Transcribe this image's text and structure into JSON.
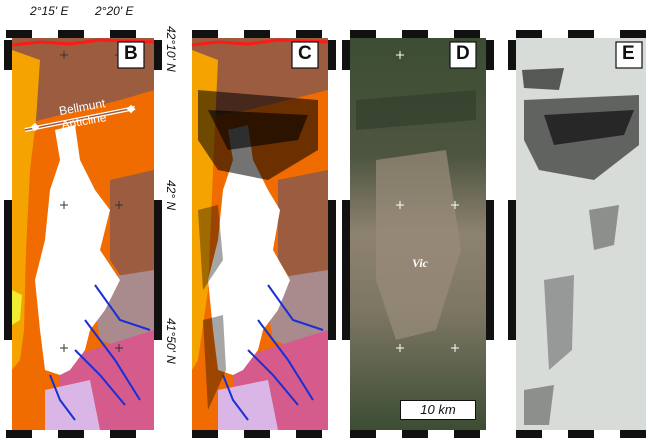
{
  "coordinates": {
    "lon_left": "2°15' E",
    "lon_right": "2°20' E",
    "lat_top": "42°10' N",
    "lat_mid": "42° N",
    "lat_bottom": "41°50' N"
  },
  "panels": [
    {
      "letter": "B",
      "kind": "geologic-map"
    },
    {
      "letter": "C",
      "kind": "geologic-map-with-features"
    },
    {
      "letter": "D",
      "kind": "satellite-image"
    },
    {
      "letter": "E",
      "kind": "feature-mask"
    }
  ],
  "labels": {
    "anticline": "Bellmunt\nAnticline",
    "town": "Vic",
    "scale": "10 km"
  },
  "colors": {
    "yellow": "#f5a300",
    "orange": "#f06b00",
    "brown": "#9b5c3f",
    "mauve": "#a98b8e",
    "pink": "#d45b8c",
    "lavender": "#d9b6e6",
    "fault_blue": "#1a2fd6",
    "red_line": "#ff1a1a",
    "satellite_green": "#3c4d33",
    "satellite_tan": "#9a8c7a",
    "mask_bg": "#d7dcd8"
  }
}
